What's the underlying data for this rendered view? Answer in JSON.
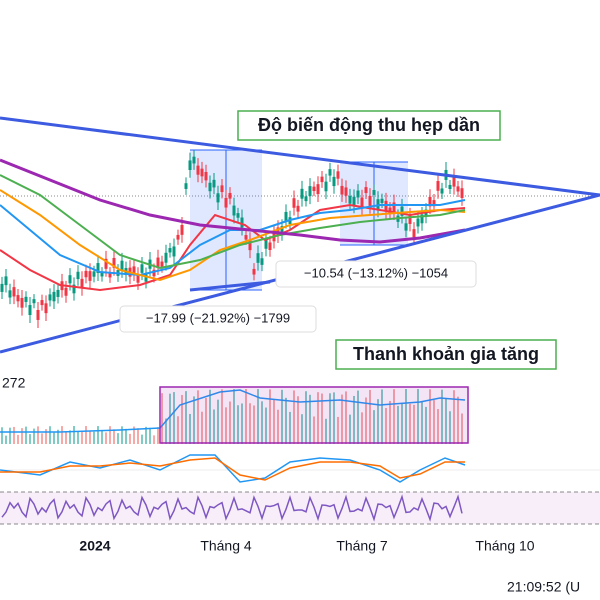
{
  "annotations": {
    "volatility": "Độ biến động thu hẹp dần",
    "liquidity": "Thanh khoản gia tăng",
    "measure_1": "−17.99 (−21.92%) −1799",
    "measure_2": "−10.54 (−13.12%) −1054",
    "volume_label": "272"
  },
  "time_axis": [
    "2024",
    "Tháng 4",
    "Tháng 7",
    "Tháng 10"
  ],
  "clock": "21:09:52 (U"
}
